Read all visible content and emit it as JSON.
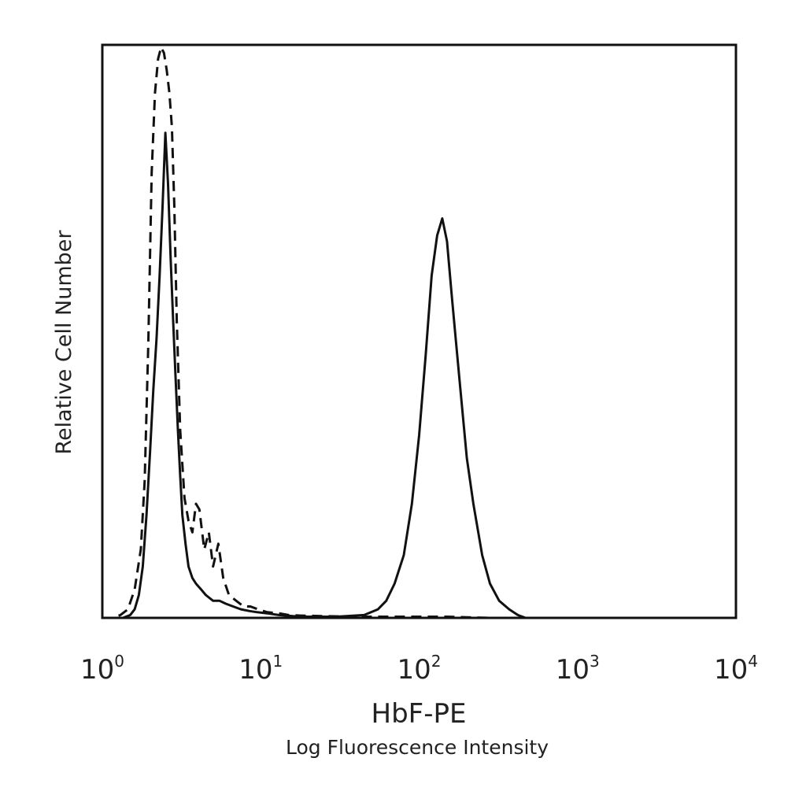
{
  "chart_data": {
    "type": "line",
    "title": "",
    "xlabel": "HbF-PE",
    "xlabel_sub": "Log Fluorescence Intensity",
    "ylabel": "Relative Cell Number",
    "x_scale": "log",
    "xlim": [
      1,
      10000
    ],
    "ylim": [
      0,
      100
    ],
    "grid": false,
    "x_ticks": [
      {
        "base": "10",
        "exp": "0",
        "value": 1
      },
      {
        "base": "10",
        "exp": "1",
        "value": 10
      },
      {
        "base": "10",
        "exp": "2",
        "value": 100
      },
      {
        "base": "10",
        "exp": "3",
        "value": 1000
      },
      {
        "base": "10",
        "exp": "4",
        "value": 10000
      }
    ],
    "series": [
      {
        "style": "dashed",
        "color": "#111111",
        "x": [
          1.15,
          1.3,
          1.45,
          1.6,
          1.75,
          1.85,
          1.95,
          2.05,
          2.15,
          2.25,
          2.35,
          2.45,
          2.55,
          2.65,
          2.75,
          2.85,
          2.95,
          3.1,
          3.3,
          3.5,
          3.7,
          3.9,
          4.1,
          4.4,
          4.7,
          5.0,
          5.4,
          5.8,
          6.3,
          7.0,
          7.8,
          8.6,
          9.6,
          11,
          13,
          15,
          18,
          25,
          40,
          60,
          100,
          150,
          200,
          300
        ],
        "y": [
          0,
          0.5,
          1.5,
          5,
          12,
          24,
          48,
          78,
          92,
          98,
          100,
          99,
          96,
          92,
          86,
          72,
          52,
          33,
          21,
          17,
          15,
          20,
          19,
          12,
          15,
          9,
          13,
          7,
          4,
          3,
          2,
          2,
          1.5,
          1,
          0.8,
          0.5,
          0.4,
          0.3,
          0.2,
          0.2,
          0.2,
          0.2,
          0.1,
          0
        ]
      },
      {
        "style": "solid",
        "color": "#111111",
        "x": [
          1.35,
          1.5,
          1.6,
          1.7,
          1.8,
          1.9,
          2.0,
          2.1,
          2.2,
          2.3,
          2.4,
          2.5,
          2.6,
          2.7,
          2.8,
          2.9,
          3.0,
          3.1,
          3.2,
          3.35,
          3.5,
          3.7,
          3.9,
          4.2,
          4.5,
          5.0,
          5.5,
          6.0,
          6.7,
          7.5,
          8.5,
          9.5,
          11,
          13,
          16,
          20,
          30,
          45,
          55,
          62,
          70,
          80,
          90,
          100,
          110,
          120,
          130,
          140,
          150,
          160,
          170,
          185,
          200,
          220,
          250,
          280,
          320,
          370,
          420,
          470
        ],
        "y": [
          0,
          0.5,
          1.5,
          4,
          9,
          18,
          29,
          40,
          49,
          60,
          72,
          85,
          76,
          63,
          52,
          42,
          33,
          25,
          18,
          13,
          9,
          7,
          6,
          5,
          4,
          3,
          3,
          2.5,
          2,
          1.5,
          1.2,
          1,
          0.8,
          0.5,
          0.3,
          0.2,
          0.2,
          0.5,
          1.5,
          3,
          6,
          11,
          20,
          32,
          46,
          60,
          67,
          70,
          66,
          57,
          49,
          38,
          28,
          20,
          11,
          6,
          3,
          1.5,
          0.5,
          0
        ]
      }
    ]
  }
}
